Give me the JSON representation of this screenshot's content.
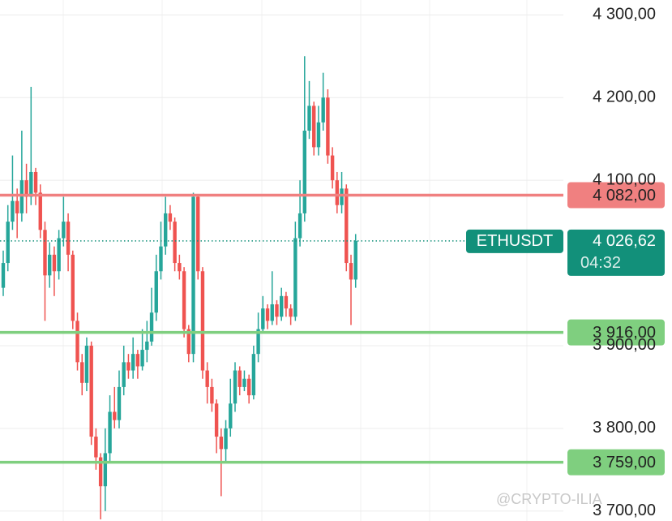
{
  "chart_data": {
    "type": "candlestick",
    "ylim": [
      3688,
      4318
    ],
    "yticks": [
      {
        "value": 4300,
        "label": "4 300,00"
      },
      {
        "value": 4200,
        "label": "4 200,00"
      },
      {
        "value": 4100,
        "label": "4 100,00"
      },
      {
        "value": 3900,
        "label": "3 900,00"
      },
      {
        "value": 3800,
        "label": "3 800,00"
      },
      {
        "value": 3700,
        "label": "3 700,00"
      }
    ],
    "grid": true,
    "up_color": "#26a69a",
    "down_color": "#ef5350",
    "open": [
      3970,
      4000,
      4050,
      4075,
      4060,
      4100,
      4080,
      4110,
      4085,
      4040,
      3985,
      4010,
      3990,
      4030,
      4050,
      4010,
      3930,
      3880,
      3855,
      3900,
      3790,
      3765,
      3730,
      3770,
      3820,
      3810,
      3850,
      3880,
      3870,
      3890,
      3875,
      3895,
      3905,
      3940,
      3990,
      4020,
      4060,
      4050,
      4000,
      3990,
      3920,
      3890,
      4080,
      3990,
      3870,
      3850,
      3830,
      3790,
      3775,
      3800,
      3830,
      3870,
      3850,
      3860,
      3840,
      3890,
      3920,
      3945,
      3930,
      3950,
      3935,
      3960,
      3945,
      3935,
      4030,
      4060,
      4160,
      4190,
      4140,
      4170,
      4200,
      4130,
      4100,
      4070,
      4090,
      4000,
      3980
    ],
    "high": [
      4015,
      4070,
      4130,
      4090,
      4160,
      4120,
      4213,
      4115,
      4095,
      4050,
      4025,
      4020,
      4040,
      4080,
      4060,
      4015,
      3940,
      3890,
      3910,
      3905,
      3800,
      3770,
      3800,
      3840,
      3850,
      3870,
      3900,
      3890,
      3910,
      3895,
      3920,
      3930,
      3970,
      4010,
      4050,
      4080,
      4070,
      4055,
      4010,
      3995,
      3925,
      4085,
      4082,
      3995,
      3880,
      3860,
      3835,
      3800,
      3810,
      3860,
      3880,
      3875,
      3870,
      3865,
      3900,
      3940,
      3960,
      3950,
      3990,
      3955,
      3970,
      3965,
      3950,
      4050,
      4100,
      4250,
      4220,
      4195,
      4190,
      4230,
      4210,
      4140,
      4110,
      4110,
      4095,
      4010,
      4035
    ],
    "low": [
      3960,
      3990,
      4040,
      4030,
      4050,
      4060,
      4070,
      4070,
      4030,
      3930,
      3970,
      3960,
      3980,
      4020,
      3990,
      3920,
      3870,
      3840,
      3845,
      3780,
      3750,
      3690,
      3700,
      3760,
      3800,
      3800,
      3840,
      3860,
      3860,
      3860,
      3870,
      3880,
      3900,
      3930,
      3980,
      4010,
      4040,
      3990,
      3980,
      3910,
      3880,
      3880,
      3980,
      3860,
      3830,
      3820,
      3770,
      3718,
      3760,
      3790,
      3820,
      3840,
      3845,
      3830,
      3835,
      3880,
      3915,
      3920,
      3925,
      3925,
      3930,
      3935,
      3925,
      3930,
      4020,
      4050,
      4150,
      4130,
      4130,
      4160,
      4120,
      4090,
      4060,
      4060,
      3990,
      3925,
      3970
    ],
    "close": [
      4000,
      4050,
      4075,
      4060,
      4100,
      4080,
      4110,
      4085,
      4040,
      3985,
      4010,
      3990,
      4030,
      4050,
      4010,
      3930,
      3880,
      3855,
      3900,
      3790,
      3765,
      3730,
      3770,
      3820,
      3810,
      3850,
      3880,
      3870,
      3890,
      3875,
      3895,
      3905,
      3940,
      3990,
      4020,
      4060,
      4050,
      4000,
      3990,
      3920,
      3890,
      4080,
      3990,
      3870,
      3850,
      3830,
      3790,
      3775,
      3800,
      3830,
      3870,
      3850,
      3860,
      3840,
      3890,
      3920,
      3945,
      3930,
      3950,
      3935,
      3960,
      3945,
      3935,
      4030,
      4060,
      4160,
      4190,
      4140,
      4170,
      4200,
      4130,
      4100,
      4070,
      4090,
      4000,
      3980,
      4026.62
    ],
    "lines": [
      {
        "value": 4082,
        "label": "4 082,00",
        "color": "#f08080"
      },
      {
        "value": 3916,
        "label": "3 916,00",
        "color": "#7fcf7f"
      },
      {
        "value": 3759,
        "label": "3 759,00",
        "color": "#7fcf7f"
      }
    ],
    "current": {
      "value": 4026.62,
      "label": "4 026,62",
      "symbol": "ETHUSDT",
      "countdown": "04:32",
      "color": "#12907a"
    },
    "watermark": "@CRYPTO-ILIA"
  }
}
